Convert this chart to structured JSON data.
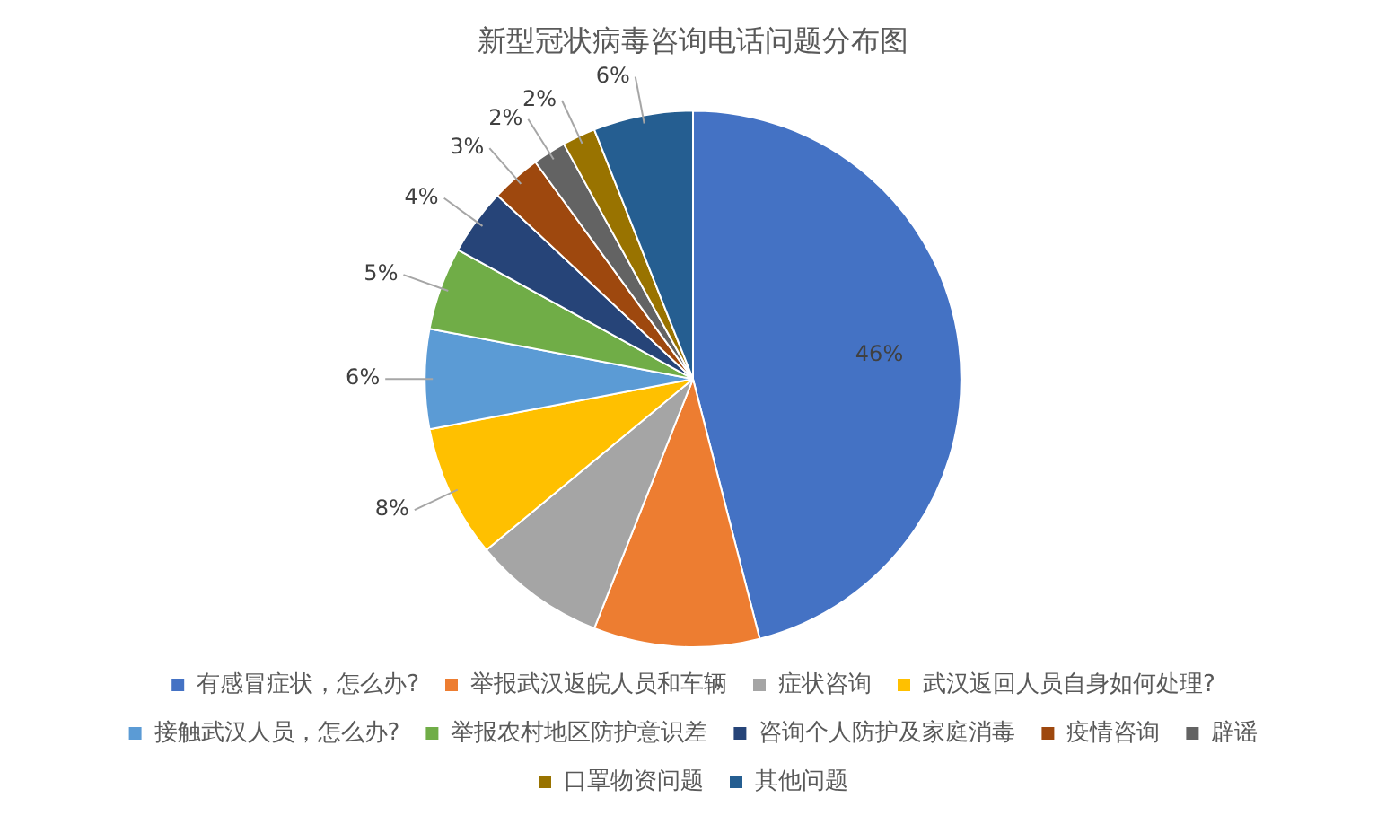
{
  "chart_data": {
    "type": "pie",
    "title": "新型冠状病毒咨询电话问题分布图",
    "categories": [
      "有感冒症状，怎么办?",
      "举报武汉返皖人员和车辆",
      "症状咨询",
      "武汉返回人员自身如何处理?",
      "接触武汉人员，怎么办?",
      "举报农村地区防护意识差",
      "咨询个人防护及家庭消毒",
      "疫情咨询",
      "辟谣",
      "口罩物资问题",
      "其他问题"
    ],
    "values": [
      46,
      10,
      8,
      8,
      6,
      5,
      4,
      3,
      2,
      2,
      6
    ],
    "value_labels": [
      "46%",
      null,
      null,
      "8%",
      "6%",
      "5%",
      "4%",
      "3%",
      "2%",
      "2%",
      "6%"
    ],
    "colors": [
      "#4472c4",
      "#ed7d31",
      "#a5a5a5",
      "#ffc000",
      "#5b9bd5",
      "#70ad47",
      "#264478",
      "#9e480e",
      "#636363",
      "#997300",
      "#255e91"
    ],
    "legend": "bottom"
  }
}
